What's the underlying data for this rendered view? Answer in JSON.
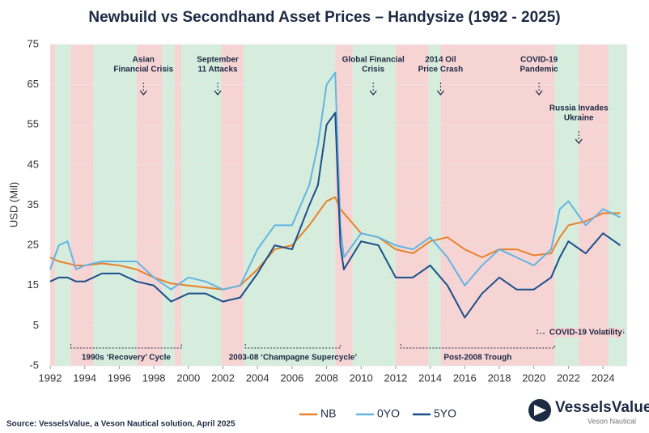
{
  "chart_data": {
    "type": "line",
    "title": "Newbuild vs Secondhand Asset Prices – Handysize (1992 - 2025)",
    "y_label": "USD (Mil)",
    "source": "Source: VesselsValue, a Veson Nautical solution, April 2025",
    "brand": "VesselsValue",
    "brand_sub": "Veson Nautical",
    "x": [
      1992,
      1992.5,
      1993,
      1993.5,
      1994,
      1995,
      1996,
      1997,
      1998,
      1999,
      2000,
      2001,
      2002,
      2003,
      2004,
      2005,
      2006,
      2007,
      2007.5,
      2008,
      2008.5,
      2008.8,
      2009,
      2010,
      2011,
      2012,
      2013,
      2014,
      2015,
      2016,
      2017,
      2018,
      2019,
      2020,
      2021,
      2021.5,
      2022,
      2023,
      2024,
      2025
    ],
    "series": [
      {
        "name": "NB",
        "color": "#e8822a",
        "values": [
          22,
          21,
          20.5,
          20,
          20,
          20.5,
          20,
          19,
          17,
          15.5,
          15,
          14.5,
          14,
          15,
          19,
          24,
          25,
          30,
          33,
          36,
          37,
          34,
          33,
          28,
          27,
          24,
          23,
          26,
          27,
          24,
          22,
          24,
          24,
          22.5,
          23,
          27,
          30,
          31,
          33,
          33
        ]
      },
      {
        "name": "0YO",
        "color": "#62b5e3",
        "values": [
          19,
          25,
          26,
          19,
          20,
          21,
          21,
          21,
          17,
          14,
          17,
          16,
          14,
          15,
          24,
          30,
          30,
          40,
          50,
          65,
          68,
          30,
          22,
          28,
          27,
          25,
          24,
          27,
          22,
          15,
          20,
          24,
          22,
          20,
          24,
          34,
          36,
          30,
          34,
          32
        ]
      },
      {
        "name": "5YO",
        "color": "#1a4f8c",
        "values": [
          16,
          17,
          17,
          16,
          16,
          18,
          18,
          16,
          15,
          11,
          13,
          13,
          11,
          12,
          18,
          25,
          24,
          35,
          40,
          55,
          58,
          25,
          19,
          26,
          25,
          17,
          17,
          20,
          15,
          7,
          13,
          17,
          14,
          14,
          17,
          22,
          26,
          23,
          28,
          25
        ]
      }
    ],
    "xlim": [
      1992,
      2025.4
    ],
    "xticks": [
      1992,
      1994,
      1996,
      1998,
      2000,
      2002,
      2004,
      2006,
      2008,
      2010,
      2012,
      2014,
      2016,
      2018,
      2020,
      2022,
      2024
    ],
    "ylim": [
      -5,
      75
    ],
    "yticks": [
      -5,
      5,
      15,
      25,
      35,
      45,
      55,
      65,
      75
    ],
    "bands": [
      {
        "start": 1992,
        "end": 1992.3,
        "color": "#f7d4d4"
      },
      {
        "start": 1992.3,
        "end": 1993.2,
        "color": "#d6ecdc"
      },
      {
        "start": 1993.2,
        "end": 1994.5,
        "color": "#f7d4d4"
      },
      {
        "start": 1994.5,
        "end": 1997,
        "color": "#d6ecdc"
      },
      {
        "start": 1997,
        "end": 1998.5,
        "color": "#f7d4d4"
      },
      {
        "start": 1998.5,
        "end": 1999.2,
        "color": "#d6ecdc"
      },
      {
        "start": 1999.2,
        "end": 1999.6,
        "color": "#f7d4d4"
      },
      {
        "start": 1999.6,
        "end": 2001.9,
        "color": "#d6ecdc"
      },
      {
        "start": 2001.9,
        "end": 2003.2,
        "color": "#f7d4d4"
      },
      {
        "start": 2003.2,
        "end": 2008.5,
        "color": "#d6ecdc"
      },
      {
        "start": 2008.5,
        "end": 2009.5,
        "color": "#f7d4d4"
      },
      {
        "start": 2009.5,
        "end": 2012,
        "color": "#d6ecdc"
      },
      {
        "start": 2012,
        "end": 2013.9,
        "color": "#f7d4d4"
      },
      {
        "start": 2013.9,
        "end": 2014.6,
        "color": "#d6ecdc"
      },
      {
        "start": 2014.6,
        "end": 2021.2,
        "color": "#f7d4d4"
      },
      {
        "start": 2021.2,
        "end": 2022.6,
        "color": "#d6ecdc"
      },
      {
        "start": 2022.6,
        "end": 2024.3,
        "color": "#f7d4d4"
      },
      {
        "start": 2024.3,
        "end": 2025.4,
        "color": "#d6ecdc"
      }
    ],
    "events": [
      {
        "label": [
          "Asian",
          "Financial Crisis"
        ],
        "x": 1997.4
      },
      {
        "label": [
          "September",
          "11 Attacks"
        ],
        "x": 2001.7
      },
      {
        "label": [
          "Global Financial",
          "Crisis"
        ],
        "x": 2010.7
      },
      {
        "label": [
          "2014 Oil",
          "Price Crash"
        ],
        "x": 2014.6
      },
      {
        "label": [
          "COVID-19",
          "Pandemic"
        ],
        "x": 2020.3
      },
      {
        "label": [
          "Russia Invades",
          "Ukraine"
        ],
        "x": 2022.6
      }
    ],
    "periods": [
      {
        "label": "1990s ‘Recovery’ Cycle",
        "start": 1993.2,
        "end": 1999.6
      },
      {
        "label": "2003-08 ‘Champagne Supercycle’",
        "start": 2003.3,
        "end": 2008.8
      },
      {
        "label": "Post-2008 Trough",
        "start": 2012.3,
        "end": 2021.2
      },
      {
        "label": "COVID-19 Volatility",
        "start": 2020.2,
        "end": 2025.2
      }
    ]
  }
}
